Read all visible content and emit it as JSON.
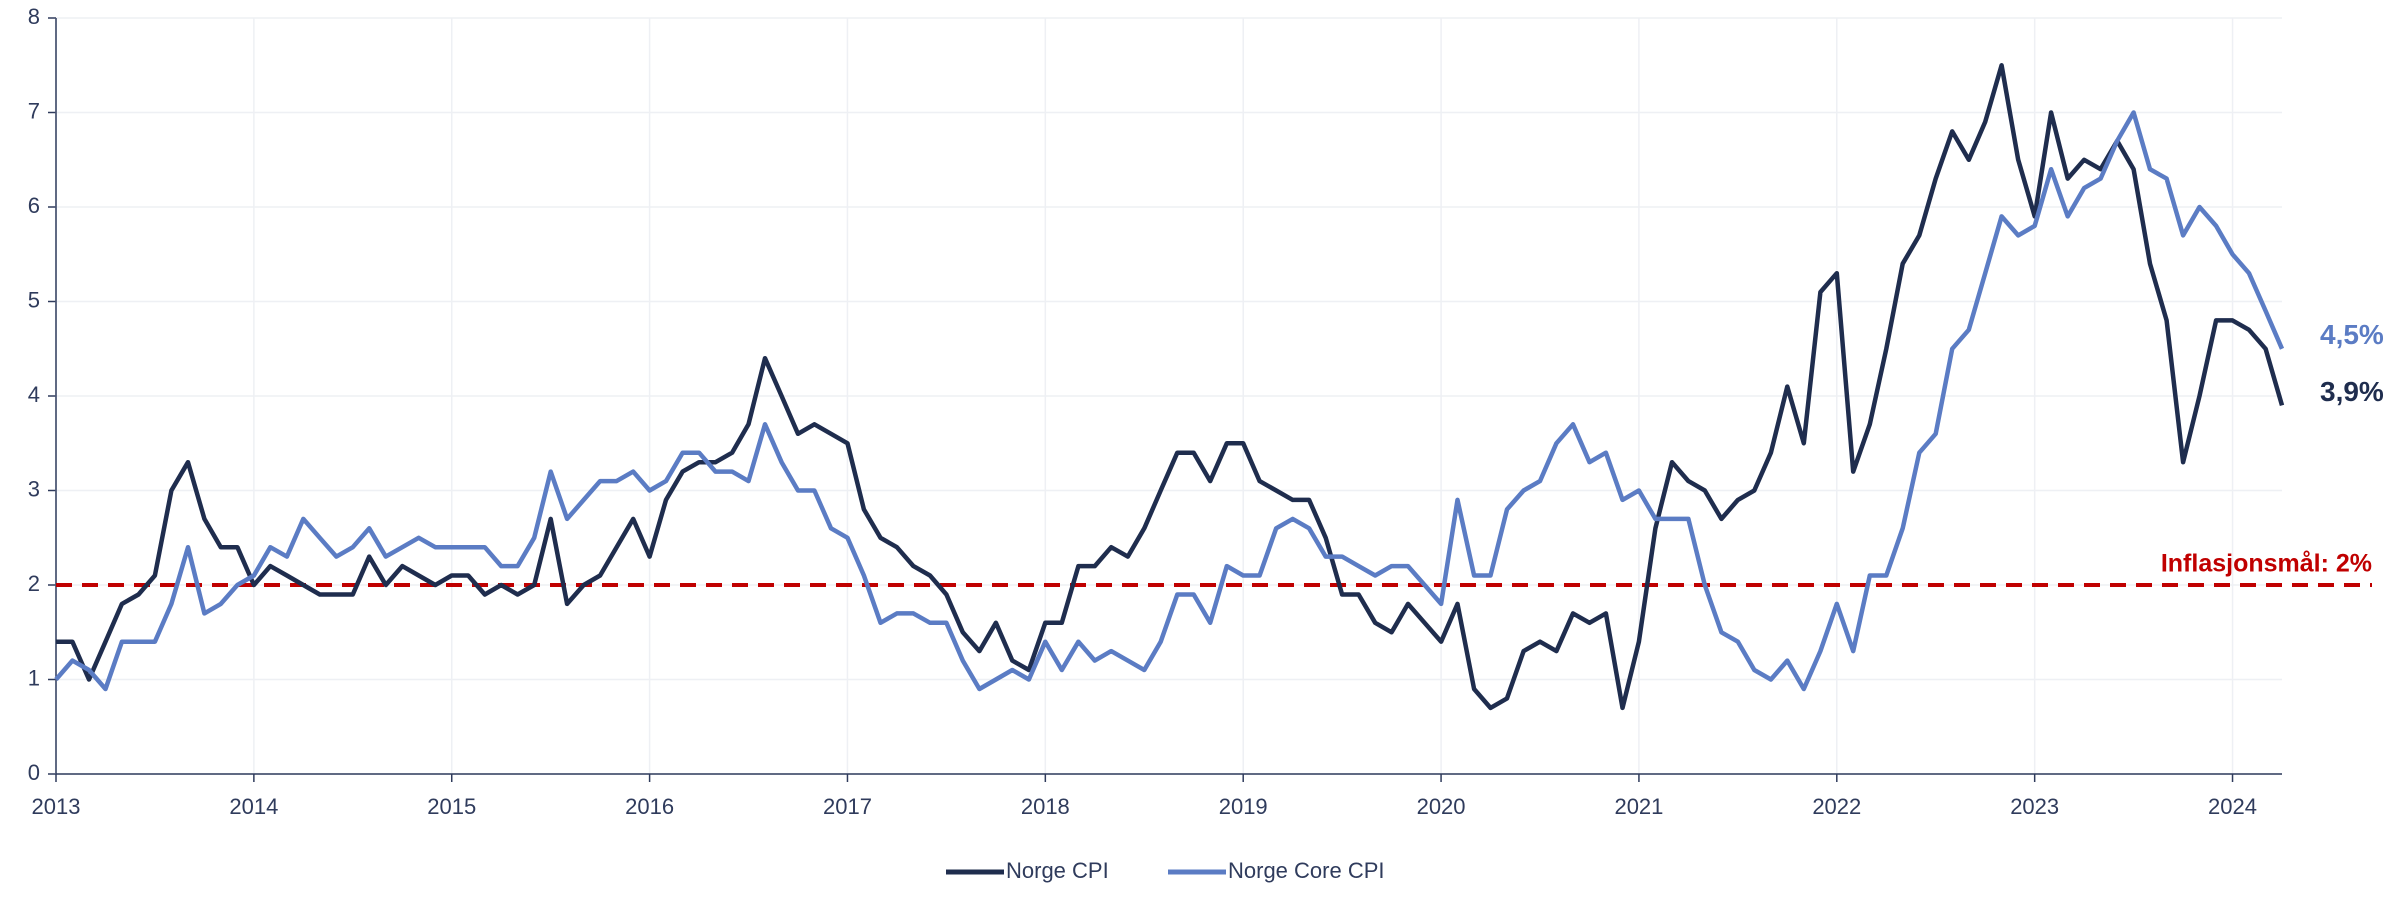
{
  "chart_data": {
    "type": "line",
    "x": [
      2013,
      2013.083,
      2013.167,
      2013.25,
      2013.333,
      2013.417,
      2013.5,
      2013.583,
      2013.667,
      2013.75,
      2013.833,
      2013.917,
      2014,
      2014.083,
      2014.167,
      2014.25,
      2014.333,
      2014.417,
      2014.5,
      2014.583,
      2014.667,
      2014.75,
      2014.833,
      2014.917,
      2015,
      2015.083,
      2015.167,
      2015.25,
      2015.333,
      2015.417,
      2015.5,
      2015.583,
      2015.667,
      2015.75,
      2015.833,
      2015.917,
      2016,
      2016.083,
      2016.167,
      2016.25,
      2016.333,
      2016.417,
      2016.5,
      2016.583,
      2016.667,
      2016.75,
      2016.833,
      2016.917,
      2017,
      2017.083,
      2017.167,
      2017.25,
      2017.333,
      2017.417,
      2017.5,
      2017.583,
      2017.667,
      2017.75,
      2017.833,
      2017.917,
      2018,
      2018.083,
      2018.167,
      2018.25,
      2018.333,
      2018.417,
      2018.5,
      2018.583,
      2018.667,
      2018.75,
      2018.833,
      2018.917,
      2019,
      2019.083,
      2019.167,
      2019.25,
      2019.333,
      2019.417,
      2019.5,
      2019.583,
      2019.667,
      2019.75,
      2019.833,
      2019.917,
      2020,
      2020.083,
      2020.167,
      2020.25,
      2020.333,
      2020.417,
      2020.5,
      2020.583,
      2020.667,
      2020.75,
      2020.833,
      2020.917,
      2021,
      2021.083,
      2021.167,
      2021.25,
      2021.333,
      2021.417,
      2021.5,
      2021.583,
      2021.667,
      2021.75,
      2021.833,
      2021.917,
      2022,
      2022.083,
      2022.167,
      2022.25,
      2022.333,
      2022.417,
      2022.5,
      2022.583,
      2022.667,
      2022.75,
      2022.833,
      2022.917,
      2023,
      2023.083,
      2023.167,
      2023.25,
      2023.333,
      2023.417,
      2023.5,
      2023.583,
      2023.667,
      2023.75,
      2023.833,
      2023.917,
      2024,
      2024.083,
      2024.167,
      2024.25
    ],
    "series": [
      {
        "name": "Norge CPI",
        "color": "#1f2d4e",
        "end_label": "3,9%",
        "values": [
          1.4,
          1.4,
          1.0,
          1.4,
          1.8,
          1.9,
          2.1,
          3.0,
          3.3,
          2.7,
          2.4,
          2.4,
          2.0,
          2.2,
          2.1,
          2.0,
          1.9,
          1.9,
          1.9,
          2.3,
          2.0,
          2.2,
          2.1,
          2.0,
          2.1,
          2.1,
          1.9,
          2.0,
          1.9,
          2.0,
          2.7,
          1.8,
          2.0,
          2.1,
          2.4,
          2.7,
          2.3,
          2.9,
          3.2,
          3.3,
          3.3,
          3.4,
          3.7,
          4.4,
          4.0,
          3.6,
          3.7,
          3.6,
          3.5,
          2.8,
          2.5,
          2.4,
          2.2,
          2.1,
          1.9,
          1.5,
          1.3,
          1.6,
          1.2,
          1.1,
          1.6,
          1.6,
          2.2,
          2.2,
          2.4,
          2.3,
          2.6,
          3.0,
          3.4,
          3.4,
          3.1,
          3.5,
          3.5,
          3.1,
          3.0,
          2.9,
          2.9,
          2.5,
          1.9,
          1.9,
          1.6,
          1.5,
          1.8,
          1.6,
          1.4,
          1.8,
          0.9,
          0.7,
          0.8,
          1.3,
          1.4,
          1.3,
          1.7,
          1.6,
          1.7,
          0.7,
          1.4,
          2.6,
          3.3,
          3.1,
          3.0,
          2.7,
          2.9,
          3.0,
          3.4,
          4.1,
          3.5,
          5.1,
          5.3,
          3.2,
          3.7,
          4.5,
          5.4,
          5.7,
          6.3,
          6.8,
          6.5,
          6.9,
          7.5,
          6.5,
          5.9,
          7.0,
          6.3,
          6.5,
          6.4,
          6.7,
          6.4,
          5.4,
          4.8,
          3.3,
          4.0,
          4.8,
          4.8,
          4.7,
          4.5,
          3.9
        ]
      },
      {
        "name": "Norge Core CPI",
        "color": "#5b7cc4",
        "end_label": "4,5%",
        "values": [
          1.0,
          1.2,
          1.1,
          0.9,
          1.4,
          1.4,
          1.4,
          1.8,
          2.4,
          1.7,
          1.8,
          2.0,
          2.1,
          2.4,
          2.3,
          2.7,
          2.5,
          2.3,
          2.4,
          2.6,
          2.3,
          2.4,
          2.5,
          2.4,
          2.4,
          2.4,
          2.4,
          2.2,
          2.2,
          2.5,
          3.2,
          2.7,
          2.9,
          3.1,
          3.1,
          3.2,
          3.0,
          3.1,
          3.4,
          3.4,
          3.2,
          3.2,
          3.1,
          3.7,
          3.3,
          3.0,
          3.0,
          2.6,
          2.5,
          2.1,
          1.6,
          1.7,
          1.7,
          1.6,
          1.6,
          1.2,
          0.9,
          1.0,
          1.1,
          1.0,
          1.4,
          1.1,
          1.4,
          1.2,
          1.3,
          1.2,
          1.1,
          1.4,
          1.9,
          1.9,
          1.6,
          2.2,
          2.1,
          2.1,
          2.6,
          2.7,
          2.6,
          2.3,
          2.3,
          2.2,
          2.1,
          2.2,
          2.2,
          2.0,
          1.8,
          2.9,
          2.1,
          2.1,
          2.8,
          3.0,
          3.1,
          3.5,
          3.7,
          3.3,
          3.4,
          2.9,
          3.0,
          2.7,
          2.7,
          2.7,
          2.0,
          1.5,
          1.4,
          1.1,
          1.0,
          1.2,
          0.9,
          1.3,
          1.8,
          1.3,
          2.1,
          2.1,
          2.6,
          3.4,
          3.6,
          4.5,
          4.7,
          5.3,
          5.9,
          5.7,
          5.8,
          6.4,
          5.9,
          6.2,
          6.3,
          6.7,
          7.0,
          6.4,
          6.3,
          5.7,
          6.0,
          5.8,
          5.5,
          5.3,
          4.9,
          4.5
        ]
      }
    ],
    "target": {
      "value": 2,
      "label": "Inflasjonsmål: 2%",
      "color": "#c00000"
    },
    "xlim": [
      2013,
      2024.25
    ],
    "xticks": [
      2013,
      2014,
      2015,
      2016,
      2017,
      2018,
      2019,
      2020,
      2021,
      2022,
      2023,
      2024
    ],
    "ylim": [
      0,
      8
    ],
    "yticks": [
      0,
      1,
      2,
      3,
      4,
      5,
      6,
      7,
      8
    ],
    "grid": true
  }
}
